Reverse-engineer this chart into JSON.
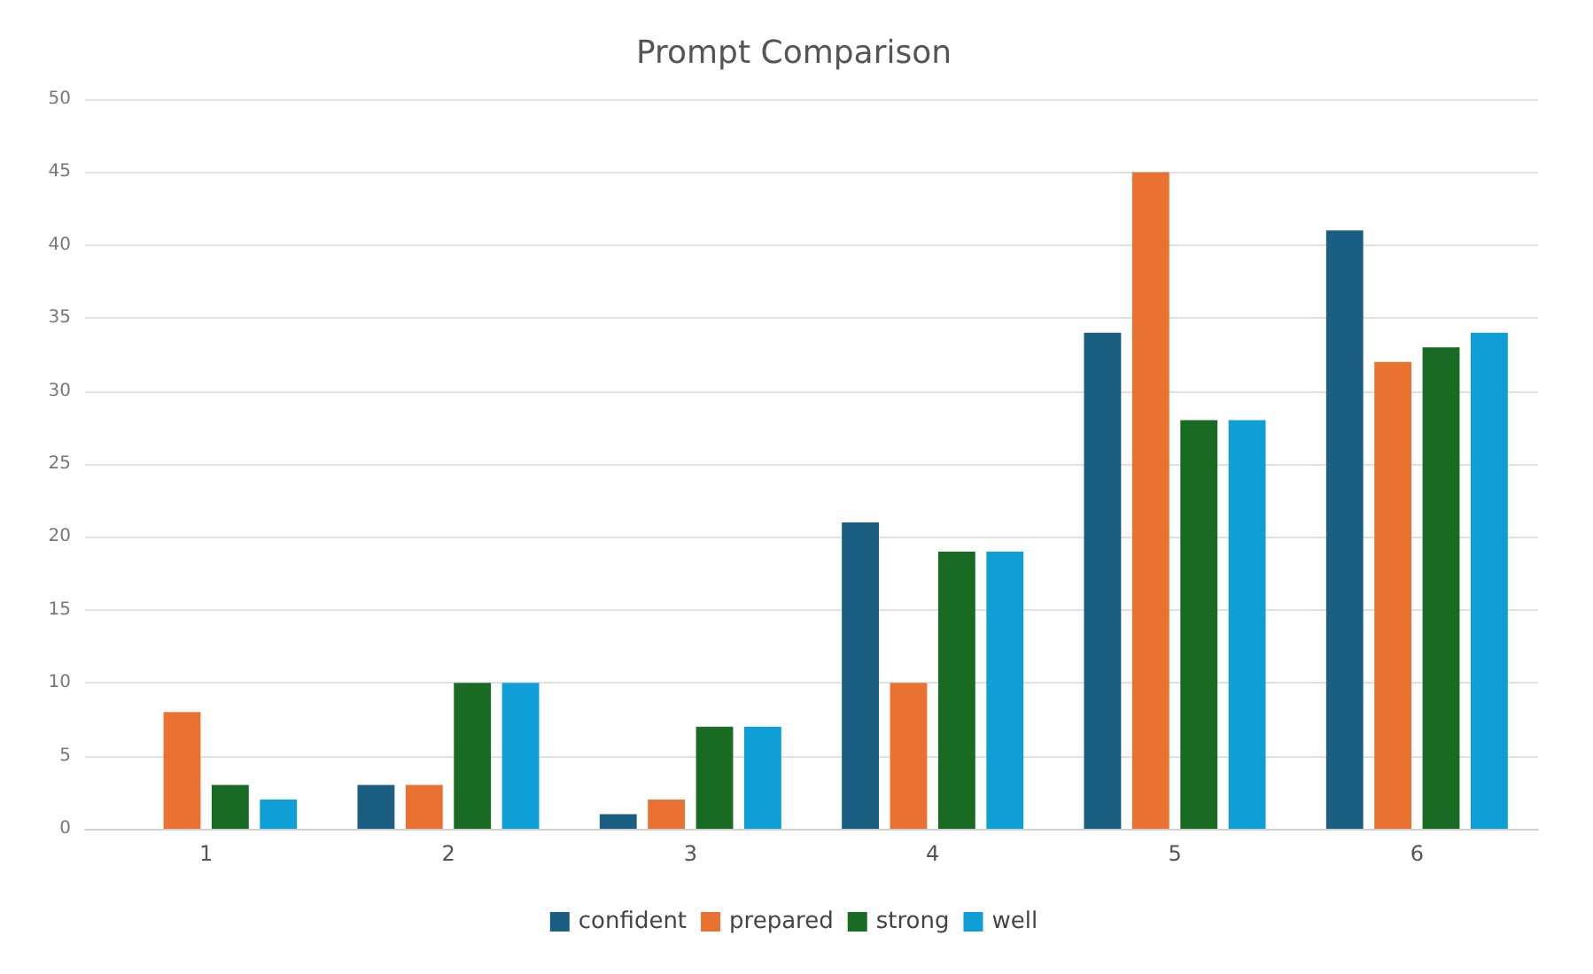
{
  "chart_data": {
    "type": "bar",
    "title": "Prompt Comparison",
    "categories": [
      "1",
      "2",
      "3",
      "4",
      "5",
      "6"
    ],
    "series": [
      {
        "name": "confident",
        "color": "#1a5f82",
        "values": [
          0,
          3,
          1,
          21,
          34,
          41
        ]
      },
      {
        "name": "prepared",
        "color": "#e97132",
        "values": [
          8,
          3,
          2,
          10,
          45,
          32
        ]
      },
      {
        "name": "strong",
        "color": "#196b24",
        "values": [
          3,
          10,
          7,
          19,
          28,
          33
        ]
      },
      {
        "name": "well",
        "color": "#0f9ed5",
        "values": [
          2,
          10,
          7,
          19,
          28,
          34
        ]
      }
    ],
    "ylim": [
      0,
      50
    ],
    "yticks": [
      0,
      5,
      10,
      15,
      20,
      25,
      30,
      35,
      40,
      45,
      50
    ],
    "grid": "y",
    "legend": "bottom"
  }
}
